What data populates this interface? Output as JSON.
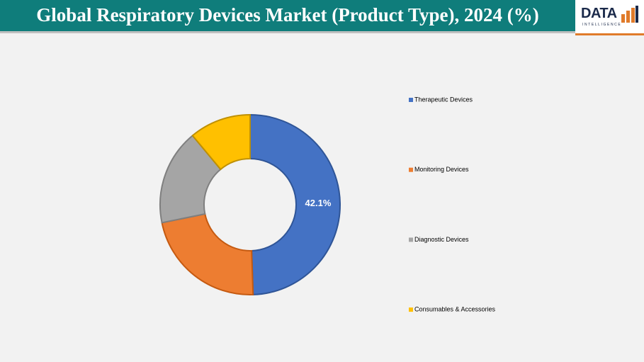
{
  "chart_data": {
    "type": "donut",
    "title": "Global Respiratory Devices Market (Product Type), 2024 (%)",
    "categories": [
      "Therapeutic Devices",
      "Monitoring Devices",
      "Diagnostic Devices",
      "Consumables & Accessories"
    ],
    "values": [
      42.1,
      19,
      14.6,
      9.4
    ],
    "value_labels": [
      "42.1%",
      null,
      null,
      null
    ],
    "colors": [
      "#4472c4",
      "#ed7d31",
      "#a5a5a5",
      "#ffc000"
    ],
    "legend": "right"
  },
  "logo": {
    "name": "DATA",
    "tagline": "INTELLIGENCE"
  }
}
